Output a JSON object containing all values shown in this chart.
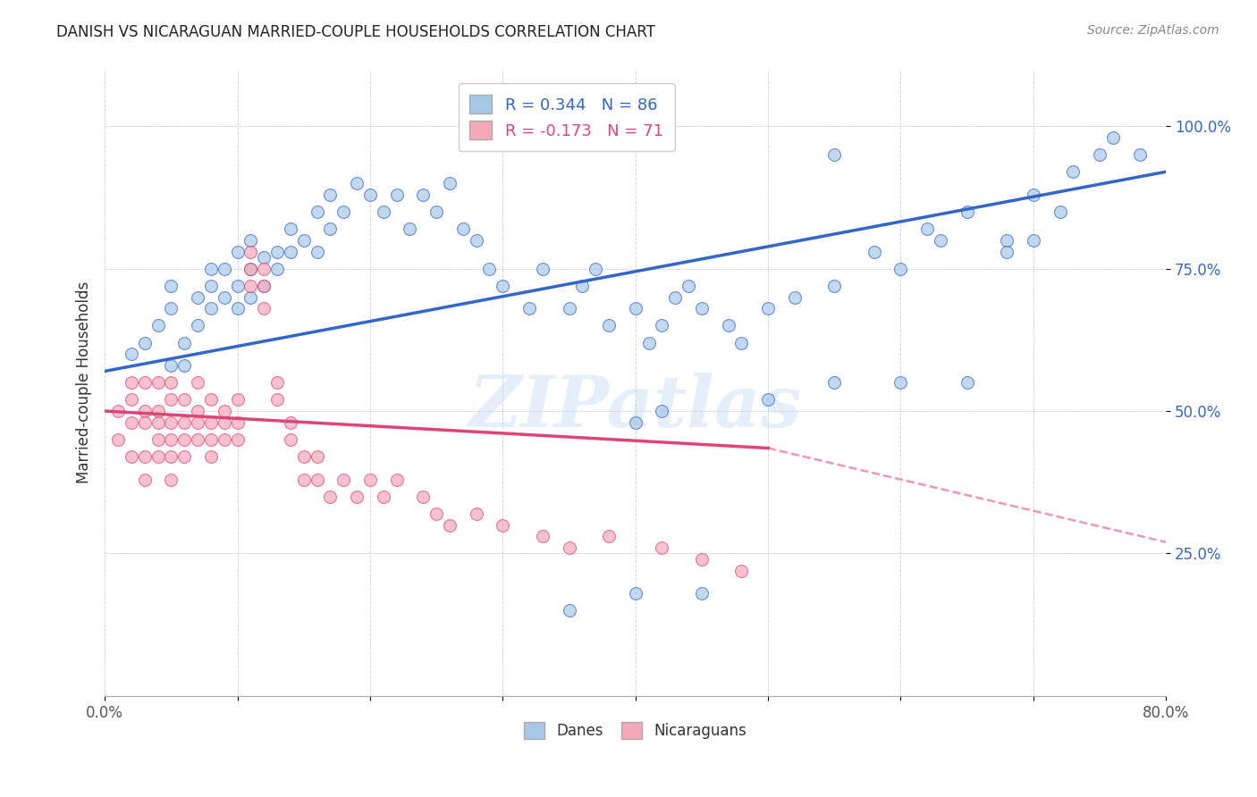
{
  "title": "DANISH VS NICARAGUAN MARRIED-COUPLE HOUSEHOLDS CORRELATION CHART",
  "source": "Source: ZipAtlas.com",
  "ylabel": "Married-couple Households",
  "ytick_labels": [
    "25.0%",
    "50.0%",
    "75.0%",
    "100.0%"
  ],
  "ytick_values": [
    0.25,
    0.5,
    0.75,
    1.0
  ],
  "xlim": [
    0.0,
    0.8
  ],
  "ylim": [
    0.0,
    1.1
  ],
  "legend_label1": "R = 0.344   N = 86",
  "legend_label2": "R = -0.173   N = 71",
  "legend_bottom1": "Danes",
  "legend_bottom2": "Nicaraguans",
  "blue_color": "#A8C8E8",
  "pink_color": "#F4A8B8",
  "blue_line_color": "#3366CC",
  "pink_line_color": "#DD4477",
  "watermark": "ZIPatlas",
  "danes_x": [
    0.02,
    0.03,
    0.04,
    0.05,
    0.05,
    0.05,
    0.06,
    0.06,
    0.07,
    0.07,
    0.08,
    0.08,
    0.08,
    0.09,
    0.09,
    0.1,
    0.1,
    0.1,
    0.11,
    0.11,
    0.11,
    0.12,
    0.12,
    0.13,
    0.13,
    0.14,
    0.14,
    0.15,
    0.16,
    0.16,
    0.17,
    0.17,
    0.18,
    0.19,
    0.2,
    0.21,
    0.22,
    0.23,
    0.24,
    0.25,
    0.26,
    0.27,
    0.28,
    0.29,
    0.3,
    0.32,
    0.33,
    0.35,
    0.36,
    0.37,
    0.38,
    0.4,
    0.41,
    0.42,
    0.43,
    0.44,
    0.45,
    0.47,
    0.48,
    0.5,
    0.52,
    0.55,
    0.58,
    0.6,
    0.62,
    0.63,
    0.65,
    0.68,
    0.7,
    0.72,
    0.73,
    0.75,
    0.76,
    0.78,
    0.4,
    0.42,
    0.5,
    0.55,
    0.6,
    0.65,
    0.68,
    0.7,
    0.55,
    0.4,
    0.35,
    0.45
  ],
  "danes_y": [
    0.6,
    0.62,
    0.65,
    0.58,
    0.68,
    0.72,
    0.62,
    0.58,
    0.7,
    0.65,
    0.75,
    0.68,
    0.72,
    0.7,
    0.75,
    0.68,
    0.72,
    0.78,
    0.75,
    0.7,
    0.8,
    0.72,
    0.77,
    0.78,
    0.75,
    0.82,
    0.78,
    0.8,
    0.85,
    0.78,
    0.82,
    0.88,
    0.85,
    0.9,
    0.88,
    0.85,
    0.88,
    0.82,
    0.88,
    0.85,
    0.9,
    0.82,
    0.8,
    0.75,
    0.72,
    0.68,
    0.75,
    0.68,
    0.72,
    0.75,
    0.65,
    0.68,
    0.62,
    0.65,
    0.7,
    0.72,
    0.68,
    0.65,
    0.62,
    0.68,
    0.7,
    0.72,
    0.78,
    0.75,
    0.82,
    0.8,
    0.85,
    0.8,
    0.88,
    0.85,
    0.92,
    0.95,
    0.98,
    0.95,
    0.48,
    0.5,
    0.52,
    0.55,
    0.55,
    0.55,
    0.78,
    0.8,
    0.95,
    0.18,
    0.15,
    0.18
  ],
  "nicaraguans_x": [
    0.01,
    0.01,
    0.02,
    0.02,
    0.02,
    0.02,
    0.03,
    0.03,
    0.03,
    0.03,
    0.03,
    0.04,
    0.04,
    0.04,
    0.04,
    0.04,
    0.05,
    0.05,
    0.05,
    0.05,
    0.05,
    0.05,
    0.06,
    0.06,
    0.06,
    0.06,
    0.07,
    0.07,
    0.07,
    0.07,
    0.08,
    0.08,
    0.08,
    0.08,
    0.09,
    0.09,
    0.09,
    0.1,
    0.1,
    0.1,
    0.11,
    0.11,
    0.11,
    0.12,
    0.12,
    0.12,
    0.13,
    0.13,
    0.14,
    0.14,
    0.15,
    0.15,
    0.16,
    0.16,
    0.17,
    0.18,
    0.19,
    0.2,
    0.21,
    0.22,
    0.24,
    0.25,
    0.26,
    0.28,
    0.3,
    0.33,
    0.35,
    0.38,
    0.42,
    0.45,
    0.48
  ],
  "nicaraguans_y": [
    0.5,
    0.45,
    0.52,
    0.48,
    0.55,
    0.42,
    0.5,
    0.55,
    0.48,
    0.42,
    0.38,
    0.5,
    0.55,
    0.48,
    0.42,
    0.45,
    0.52,
    0.48,
    0.55,
    0.42,
    0.38,
    0.45,
    0.52,
    0.48,
    0.45,
    0.42,
    0.55,
    0.5,
    0.48,
    0.45,
    0.52,
    0.48,
    0.45,
    0.42,
    0.5,
    0.48,
    0.45,
    0.52,
    0.48,
    0.45,
    0.78,
    0.75,
    0.72,
    0.75,
    0.72,
    0.68,
    0.55,
    0.52,
    0.48,
    0.45,
    0.42,
    0.38,
    0.42,
    0.38,
    0.35,
    0.38,
    0.35,
    0.38,
    0.35,
    0.38,
    0.35,
    0.32,
    0.3,
    0.32,
    0.3,
    0.28,
    0.26,
    0.28,
    0.26,
    0.24,
    0.22
  ],
  "blue_line_x0": 0.0,
  "blue_line_y0": 0.57,
  "blue_line_x1": 0.8,
  "blue_line_y1": 0.92,
  "pink_line_solid_x0": 0.0,
  "pink_line_solid_y0": 0.5,
  "pink_line_solid_x1": 0.5,
  "pink_line_solid_y1": 0.435,
  "pink_line_dash_x0": 0.5,
  "pink_line_dash_y0": 0.435,
  "pink_line_dash_x1": 0.8,
  "pink_line_dash_y1": 0.27
}
